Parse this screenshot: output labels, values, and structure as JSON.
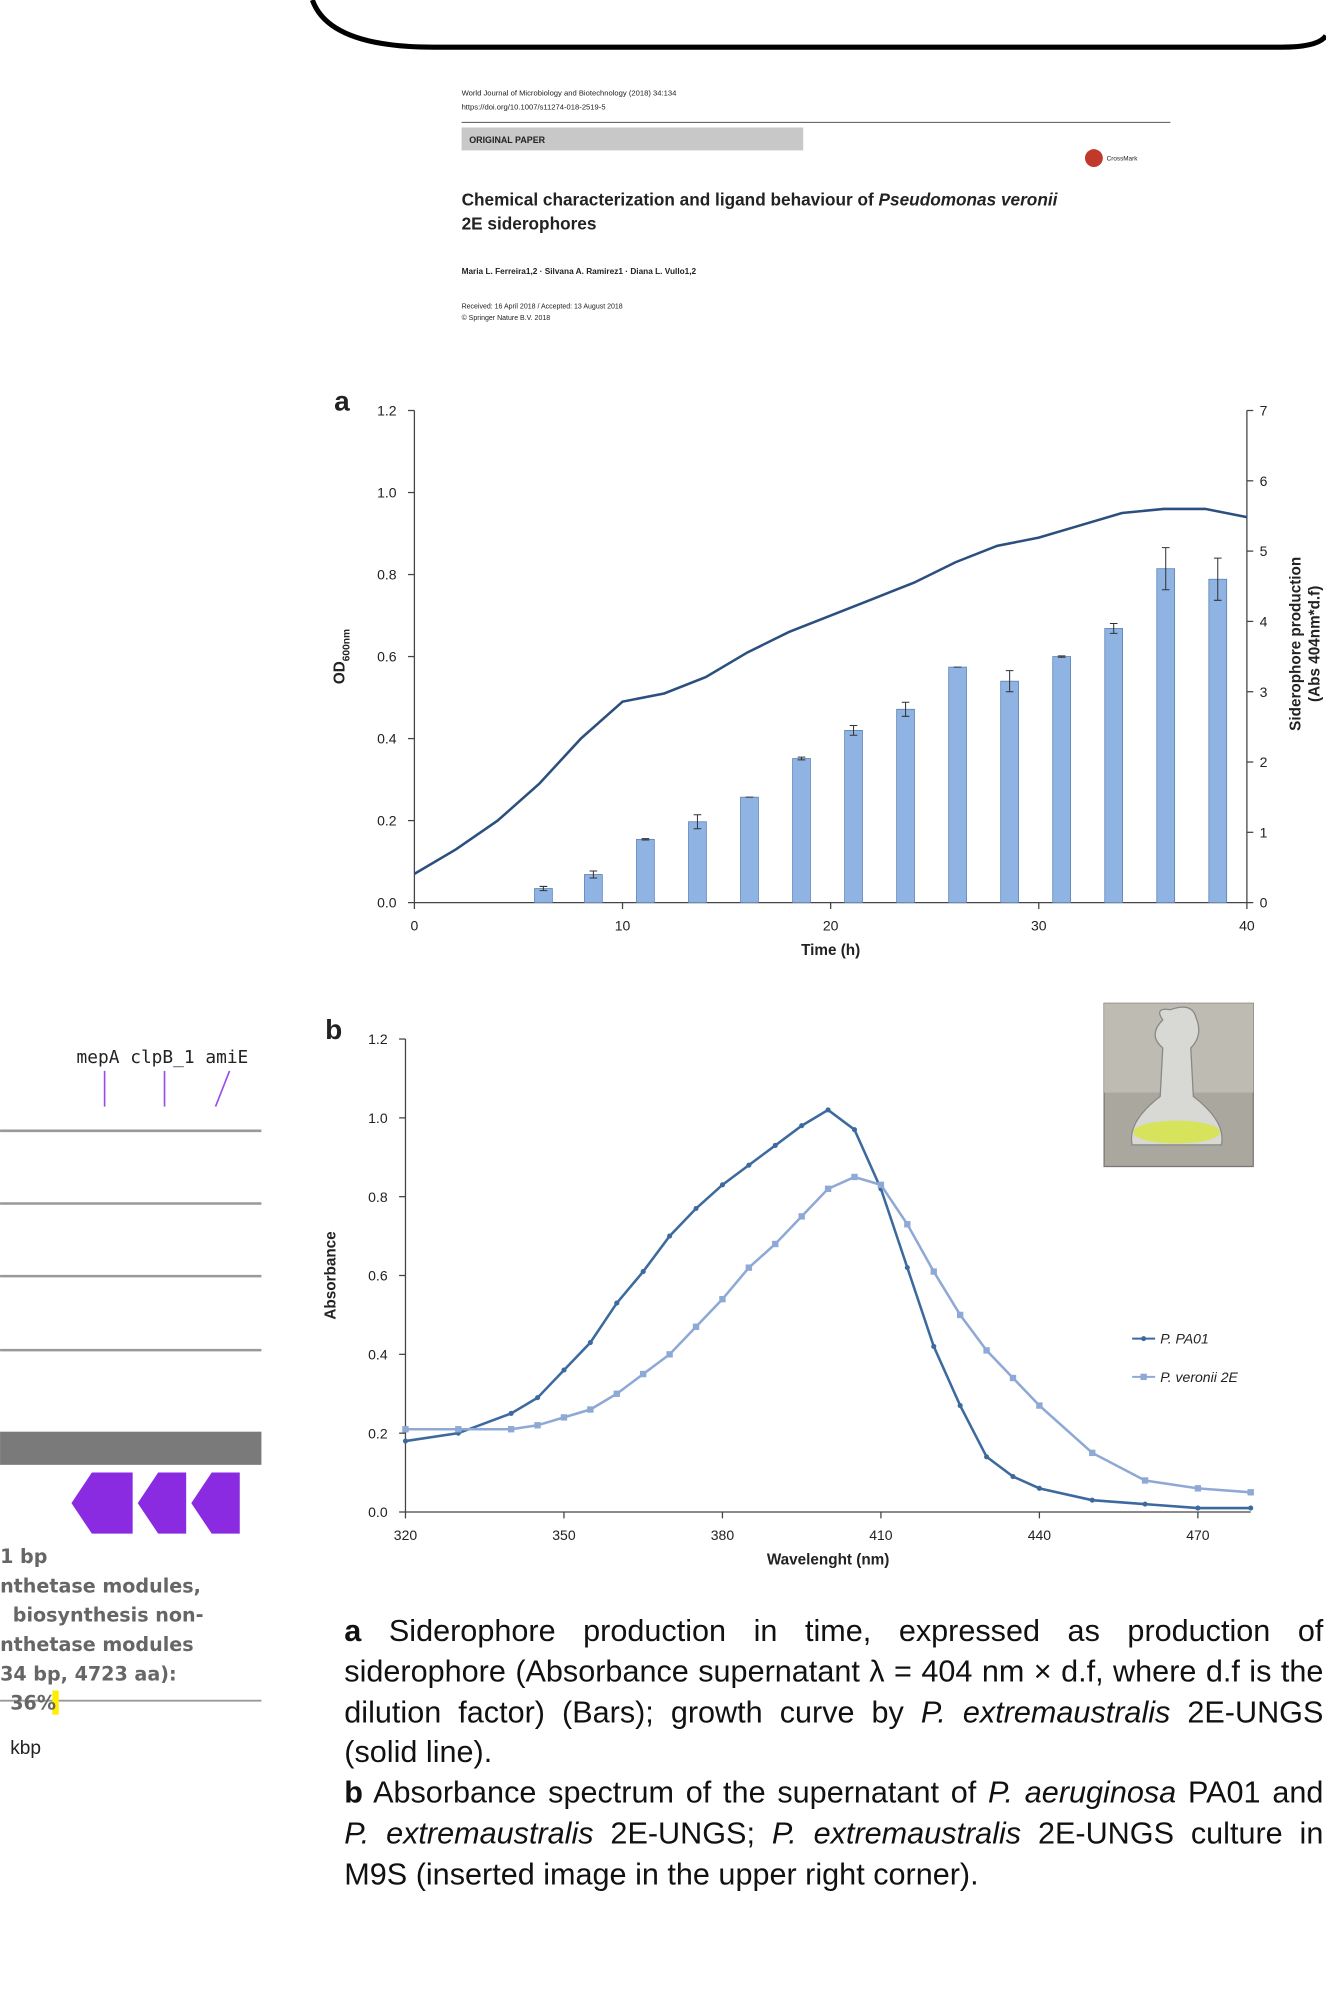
{
  "paper": {
    "journal": "World Journal of Microbiology and Biotechnology (2018) 34:134",
    "doi": "https://doi.org/10.1007/s11274-018-2519-5",
    "section": "ORIGINAL PAPER",
    "crossmark": "CrossMark",
    "title_parts": [
      "Chemical characterization and ligand behaviour of ",
      "Pseudomonas veronii",
      " 2E siderophores"
    ],
    "authors": "Maria L. Ferreira1,2 · Silvana A. Ramirez1 · Diana L. Vullo1,2",
    "received": "Received: 16 April 2018 / Accepted: 13 August 2018",
    "copyright": "© Springer Nature B.V. 2018"
  },
  "genome": {
    "genes": "mepA clpB_1 amiE",
    "lines": [
      "1 bp",
      "nthetase modules,",
      "biosynthesis non-",
      "nthetase modules",
      "34 bp, 4723 aa):",
      "36%"
    ],
    "unit": "kbp"
  },
  "chart_data": [
    {
      "type": "combo",
      "label": "a",
      "xlabel": "Time (h)",
      "ylabel": {
        "text": "OD",
        "sub": "600nm"
      },
      "y2label": [
        "Siderophore production",
        "(Abs 404nm*d.f)"
      ],
      "xlim": [
        0,
        40
      ],
      "xticks": [
        0,
        10,
        20,
        30,
        40
      ],
      "ylim": [
        0,
        1.2
      ],
      "yticks": [
        {
          "value": 0,
          "label": "0.0"
        },
        0.2,
        0.4,
        0.6,
        0.8,
        {
          "value": 1,
          "label": "1.0"
        },
        1.2
      ],
      "y2lim": [
        0,
        7
      ],
      "y2ticks": [
        0,
        1,
        2,
        3,
        4,
        5,
        6,
        7
      ],
      "series": [
        {
          "type": "bar",
          "axis": "y2",
          "color": "#8fb4e3",
          "x": [
            6.2,
            8.6,
            11.1,
            13.6,
            16.1,
            18.6,
            21.1,
            23.6,
            26.1,
            28.6,
            31.1,
            33.6,
            36.1,
            38.6
          ],
          "values": [
            0.2,
            0.4,
            0.9,
            1.15,
            1.5,
            2.05,
            2.45,
            2.75,
            3.35,
            3.15,
            3.5,
            3.9,
            4.75,
            4.6
          ],
          "errors": [
            0.03,
            0.05,
            0.01,
            0.1,
            0,
            0.02,
            0.07,
            0.1,
            0,
            0.15,
            0.01,
            0.07,
            0.3,
            0.3
          ]
        },
        {
          "type": "line",
          "color": "#2b4f7e",
          "x": [
            0,
            2,
            4,
            6,
            8,
            10,
            12,
            14,
            16,
            18,
            20,
            22,
            24,
            26,
            28,
            30,
            32,
            34,
            36,
            38,
            40
          ],
          "values": [
            0.07,
            0.13,
            0.2,
            0.29,
            0.4,
            0.49,
            0.51,
            0.55,
            0.61,
            0.66,
            0.7,
            0.74,
            0.78,
            0.83,
            0.87,
            0.89,
            0.92,
            0.95,
            0.96,
            0.96,
            0.94
          ]
        }
      ]
    },
    {
      "type": "line",
      "label": "b",
      "xlabel": "Wavelenght (nm)",
      "ylabel": {
        "text": "Absorbance"
      },
      "xlim": [
        320,
        480
      ],
      "xticks": [
        320,
        350,
        380,
        410,
        440,
        470
      ],
      "ylim": [
        0,
        1.2
      ],
      "yticks": [
        {
          "value": 0,
          "label": "0.0"
        },
        0.2,
        0.4,
        0.6,
        0.8,
        {
          "value": 1,
          "label": "1.0"
        },
        1.2
      ],
      "x": [
        320,
        330,
        340,
        345,
        350,
        355,
        360,
        365,
        370,
        375,
        380,
        385,
        390,
        395,
        400,
        405,
        410,
        415,
        420,
        425,
        430,
        435,
        440,
        450,
        460,
        470,
        480
      ],
      "series": [
        {
          "name": "P. PA01",
          "color": "#3d6a9e",
          "marker": "circle",
          "values": [
            0.18,
            0.2,
            0.25,
            0.29,
            0.36,
            0.43,
            0.53,
            0.61,
            0.7,
            0.77,
            0.83,
            0.88,
            0.93,
            0.98,
            1.02,
            0.97,
            0.82,
            0.62,
            0.42,
            0.27,
            0.14,
            0.09,
            0.06,
            0.03,
            0.02,
            0.01,
            0.01
          ]
        },
        {
          "name": "P. veronii 2E",
          "color": "#8fa9d6",
          "marker": "square",
          "values": [
            0.21,
            0.21,
            0.21,
            0.22,
            0.24,
            0.26,
            0.3,
            0.35,
            0.4,
            0.47,
            0.54,
            0.62,
            0.68,
            0.75,
            0.82,
            0.85,
            0.83,
            0.73,
            0.61,
            0.5,
            0.41,
            0.34,
            0.27,
            0.15,
            0.08,
            0.06,
            0.05
          ]
        }
      ]
    }
  ],
  "caption": {
    "a": {
      "label": "a",
      "parts": [
        "Siderophore production in time, expressed as production of siderophore (Absorbance supernatant λ = 404 nm × d.f, where d.f is the dilution factor) (Bars); growth curve by ",
        "P. extremaustralis",
        " 2E-UNGS (solid line)."
      ]
    },
    "b": {
      "label": "b",
      "parts": [
        "Absorbance spectrum of the supernatant of ",
        "P. aeruginosa",
        " PA01 and ",
        "P. extremaustralis",
        " 2E-UNGS; ",
        "P. extremaustralis",
        " 2E-UNGS culture in M9S (inserted image in the upper right corner)."
      ]
    }
  }
}
